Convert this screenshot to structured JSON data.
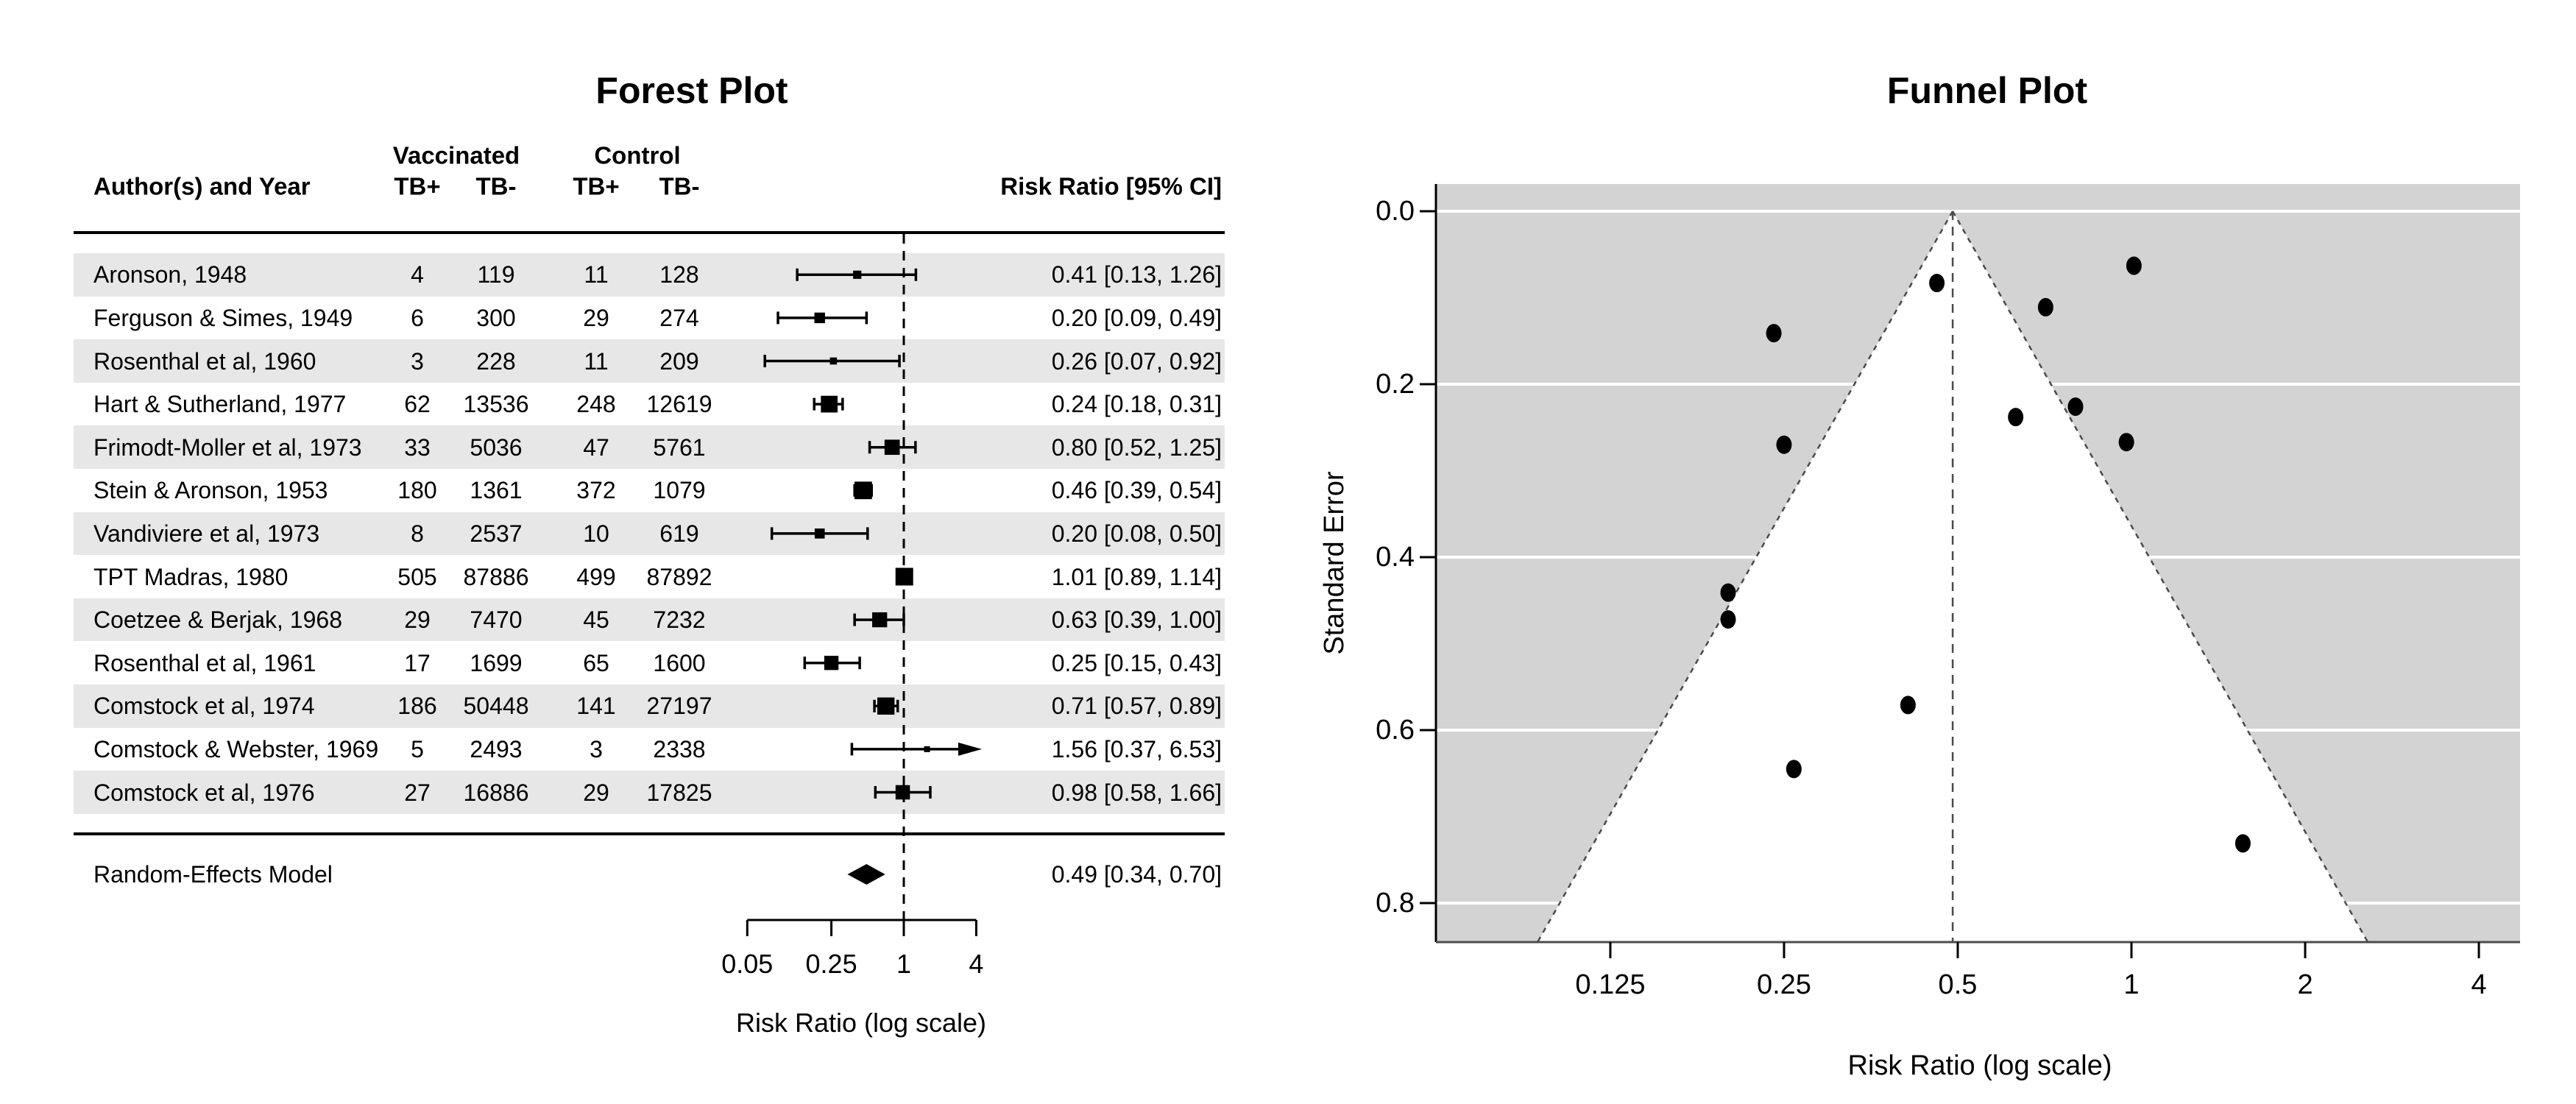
{
  "colors": {
    "ink": "#000000",
    "row_shade": "#e7e7e7",
    "funnel_bg": "#d3d3d3",
    "gridline": "#ffffff",
    "dash_gray": "#4a4a4a",
    "axis_dark": "#4d4d4d"
  },
  "chart_data": [
    {
      "type": "forest",
      "title": "Forest Plot",
      "xlabel": "Risk Ratio (log scale)",
      "x_scale": "log",
      "x_ticks": [
        {
          "v": 0.05,
          "label": "0.05"
        },
        {
          "v": 0.25,
          "label": "0.25"
        },
        {
          "v": 1,
          "label": "1"
        },
        {
          "v": 4,
          "label": "4"
        }
      ],
      "x_axis_max": 4,
      "ref_line": 1,
      "columns": {
        "author": "Author(s) and Year",
        "group1": "Vaccinated",
        "group2": "Control",
        "subcols": [
          "TB+",
          "TB-",
          "TB+",
          "TB-"
        ],
        "effect": "Risk Ratio [95% CI]"
      },
      "studies": [
        {
          "author": "Aronson, 1948",
          "vac_tb_pos": 4,
          "vac_tb_neg": 119,
          "ctl_tb_pos": 11,
          "ctl_tb_neg": 128,
          "rr": 0.41,
          "ci_lo": 0.13,
          "ci_hi": 1.26,
          "text": "0.41 [0.13, 1.26]",
          "weight": 0.7,
          "shaded": true
        },
        {
          "author": "Ferguson & Simes, 1949",
          "vac_tb_pos": 6,
          "vac_tb_neg": 300,
          "ctl_tb_pos": 29,
          "ctl_tb_neg": 274,
          "rr": 0.2,
          "ci_lo": 0.09,
          "ci_hi": 0.49,
          "text": "0.20 [0.09, 0.49]",
          "weight": 0.9,
          "shaded": false
        },
        {
          "author": "Rosenthal et al, 1960",
          "vac_tb_pos": 3,
          "vac_tb_neg": 228,
          "ctl_tb_pos": 11,
          "ctl_tb_neg": 209,
          "rr": 0.26,
          "ci_lo": 0.07,
          "ci_hi": 0.92,
          "text": "0.26 [0.07, 0.92]",
          "weight": 0.6,
          "shaded": true
        },
        {
          "author": "Hart & Sutherland, 1977",
          "vac_tb_pos": 62,
          "vac_tb_neg": 13536,
          "ctl_tb_pos": 248,
          "ctl_tb_neg": 12619,
          "rr": 0.24,
          "ci_lo": 0.18,
          "ci_hi": 0.31,
          "text": "0.24 [0.18, 0.31]",
          "weight": 1.42,
          "shaded": false
        },
        {
          "author": "Frimodt-Moller et al, 1973",
          "vac_tb_pos": 33,
          "vac_tb_neg": 5036,
          "ctl_tb_pos": 47,
          "ctl_tb_neg": 5761,
          "rr": 0.8,
          "ci_lo": 0.52,
          "ci_hi": 1.25,
          "text": "0.80 [0.52, 1.25]",
          "weight": 1.29,
          "shaded": true
        },
        {
          "author": "Stein & Aronson, 1953",
          "vac_tb_pos": 180,
          "vac_tb_neg": 1361,
          "ctl_tb_pos": 372,
          "ctl_tb_neg": 1079,
          "rr": 0.46,
          "ci_lo": 0.39,
          "ci_hi": 0.54,
          "text": "0.46 [0.39, 0.54]",
          "weight": 1.49,
          "shaded": false
        },
        {
          "author": "Vandiviere et al, 1973",
          "vac_tb_pos": 8,
          "vac_tb_neg": 2537,
          "ctl_tb_pos": 10,
          "ctl_tb_neg": 619,
          "rr": 0.2,
          "ci_lo": 0.08,
          "ci_hi": 0.5,
          "text": "0.20 [0.08, 0.50]",
          "weight": 0.85,
          "shaded": true
        },
        {
          "author": "TPT Madras, 1980",
          "vac_tb_pos": 505,
          "vac_tb_neg": 87886,
          "ctl_tb_pos": 499,
          "ctl_tb_neg": 87892,
          "rr": 1.01,
          "ci_lo": 0.89,
          "ci_hi": 1.14,
          "text": "1.01 [0.89, 1.14]",
          "weight": 1.5,
          "shaded": false
        },
        {
          "author": "Coetzee & Berjak, 1968",
          "vac_tb_pos": 29,
          "vac_tb_neg": 7470,
          "ctl_tb_pos": 45,
          "ctl_tb_neg": 7232,
          "rr": 0.63,
          "ci_lo": 0.39,
          "ci_hi": 1.0,
          "text": "0.63 [0.39, 1.00]",
          "weight": 1.27,
          "shaded": true
        },
        {
          "author": "Rosenthal et al, 1961",
          "vac_tb_pos": 17,
          "vac_tb_neg": 1699,
          "ctl_tb_pos": 65,
          "ctl_tb_neg": 1600,
          "rr": 0.25,
          "ci_lo": 0.15,
          "ci_hi": 0.43,
          "text": "0.25 [0.15, 0.43]",
          "weight": 1.21,
          "shaded": false
        },
        {
          "author": "Comstock et al, 1974",
          "vac_tb_pos": 186,
          "vac_tb_neg": 50448,
          "ctl_tb_pos": 141,
          "ctl_tb_neg": 27197,
          "rr": 0.71,
          "ci_lo": 0.57,
          "ci_hi": 0.89,
          "text": "0.71 [0.57, 0.89]",
          "weight": 1.46,
          "shaded": true
        },
        {
          "author": "Comstock & Webster, 1969",
          "vac_tb_pos": 5,
          "vac_tb_neg": 2493,
          "ctl_tb_pos": 3,
          "ctl_tb_neg": 2338,
          "rr": 1.56,
          "ci_lo": 0.37,
          "ci_hi": 6.53,
          "text": "1.56 [0.37, 6.53]",
          "weight": 0.5,
          "shaded": false
        },
        {
          "author": "Comstock et al, 1976",
          "vac_tb_pos": 27,
          "vac_tb_neg": 16886,
          "ctl_tb_pos": 29,
          "ctl_tb_neg": 17825,
          "rr": 0.98,
          "ci_lo": 0.58,
          "ci_hi": 1.66,
          "text": "0.98 [0.58, 1.66]",
          "weight": 1.22,
          "shaded": true
        }
      ],
      "summary": {
        "label": "Random-Effects Model",
        "rr": 0.49,
        "ci_lo": 0.34,
        "ci_hi": 0.7,
        "text": "0.49 [0.34, 0.70]"
      }
    },
    {
      "type": "funnel",
      "title": "Funnel Plot",
      "xlabel": "Risk Ratio (log scale)",
      "ylabel": "Standard Error",
      "x_scale": "log",
      "x_ticks": [
        {
          "v": 0.125,
          "label": "0.125"
        },
        {
          "v": 0.25,
          "label": "0.25"
        },
        {
          "v": 0.5,
          "label": "0.5"
        },
        {
          "v": 1,
          "label": "1"
        },
        {
          "v": 2,
          "label": "2"
        },
        {
          "v": 4,
          "label": "4"
        }
      ],
      "y_ticks": [
        {
          "v": 0,
          "label": "0.0"
        },
        {
          "v": 0.2,
          "label": "0.2"
        },
        {
          "v": 0.4,
          "label": "0.4"
        },
        {
          "v": 0.6,
          "label": "0.6"
        },
        {
          "v": 0.8,
          "label": "0.8"
        }
      ],
      "apex": 0.49,
      "points": [
        {
          "rr": 0.41,
          "se": 0.571
        },
        {
          "rr": 0.2,
          "se": 0.441
        },
        {
          "rr": 0.26,
          "se": 0.645
        },
        {
          "rr": 0.24,
          "se": 0.141
        },
        {
          "rr": 0.8,
          "se": 0.226
        },
        {
          "rr": 0.46,
          "se": 0.083
        },
        {
          "rr": 0.2,
          "se": 0.472
        },
        {
          "rr": 1.01,
          "se": 0.063
        },
        {
          "rr": 0.63,
          "se": 0.238
        },
        {
          "rr": 0.25,
          "se": 0.27
        },
        {
          "rr": 0.71,
          "se": 0.111
        },
        {
          "rr": 1.56,
          "se": 0.731
        },
        {
          "rr": 0.98,
          "se": 0.267
        }
      ]
    }
  ]
}
